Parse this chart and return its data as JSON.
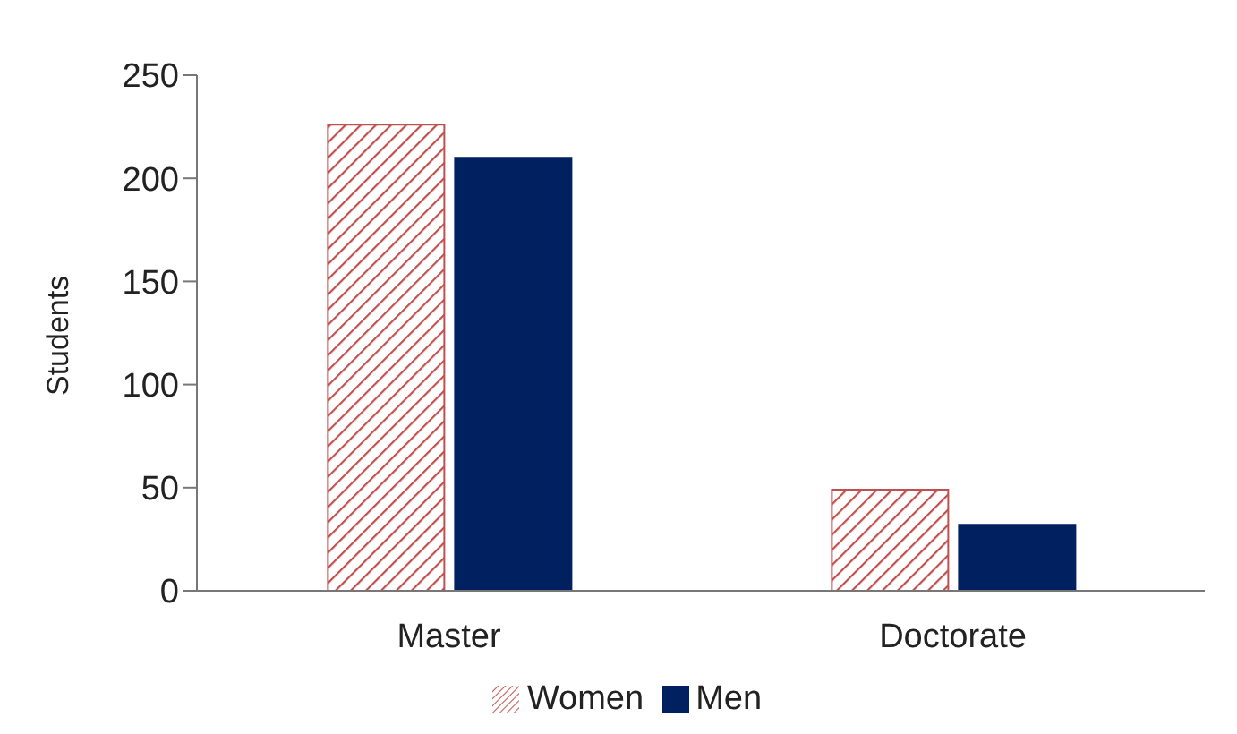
{
  "chart_data": {
    "type": "bar",
    "ylabel": "Students",
    "categories": [
      "Master",
      "Doctorate"
    ],
    "series": [
      {
        "name": "Women",
        "color": "#c0504d",
        "values": [
          226,
          49
        ]
      },
      {
        "name": "Men",
        "color": "#002060",
        "values": [
          210,
          32
        ]
      }
    ],
    "ylim": [
      0,
      250
    ],
    "yticks": [
      0,
      50,
      100,
      150,
      200,
      250
    ],
    "grid": false,
    "legend": "bottom"
  }
}
